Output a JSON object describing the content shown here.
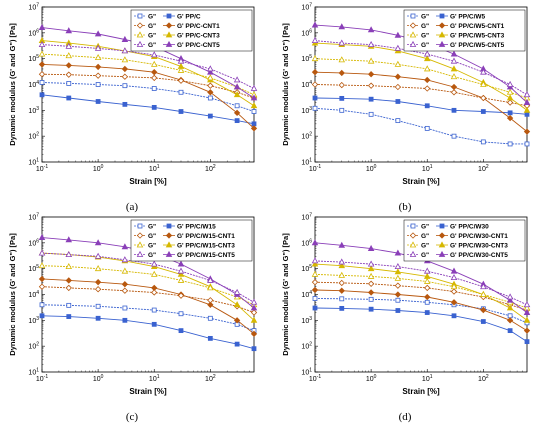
{
  "chart_data": [
    {
      "panel": "(a)",
      "type": "line",
      "xscale": "log",
      "yscale": "log",
      "xlim": [
        0.1,
        600
      ],
      "ylim": [
        10,
        10000000
      ],
      "xlabel": "Strain [%]",
      "ylabel": "Dynamic modulus (G' and G\") [Pa]",
      "xticks": [
        "10-1",
        "100",
        "101",
        "102"
      ],
      "yticks": [
        "101",
        "102",
        "103",
        "104",
        "105",
        "106",
        "107"
      ],
      "legend": {
        "position": "top-right",
        "left": [
          "G\"",
          "G\"",
          "G\"",
          "G\""
        ],
        "right": [
          "G' PP/C",
          "G' PP/C-CNT1",
          "G' PP/C-CNT3",
          "G' PP/C-CNT5"
        ]
      },
      "series": [
        {
          "name": "G' PP/C",
          "marker": "square",
          "color": "#3a62d0",
          "filled": true,
          "x": [
            0.1,
            0.3,
            1,
            3,
            10,
            30,
            100,
            300,
            600
          ],
          "y": [
            4000,
            3000,
            2200,
            1700,
            1300,
            900,
            600,
            400,
            300
          ]
        },
        {
          "name": "G\" PP/C",
          "marker": "square",
          "color": "#3a62d0",
          "filled": false,
          "x": [
            0.1,
            0.3,
            1,
            3,
            10,
            30,
            100,
            300,
            600
          ],
          "y": [
            12000,
            11000,
            10000,
            9000,
            7000,
            5000,
            3000,
            1500,
            900
          ]
        },
        {
          "name": "G' PP/C-CNT1",
          "marker": "diamond",
          "color": "#b8580f",
          "filled": true,
          "x": [
            0.1,
            0.3,
            1,
            3,
            10,
            30,
            100,
            300,
            600
          ],
          "y": [
            60000,
            55000,
            48000,
            40000,
            30000,
            15000,
            5000,
            800,
            200
          ]
        },
        {
          "name": "G\" PP/C-CNT1",
          "marker": "diamond",
          "color": "#b8580f",
          "filled": false,
          "x": [
            0.1,
            0.3,
            1,
            3,
            10,
            30,
            100,
            300,
            600
          ],
          "y": [
            25000,
            24000,
            22000,
            20000,
            18000,
            14000,
            9000,
            5000,
            3000
          ]
        },
        {
          "name": "G' PP/C-CNT3",
          "marker": "triangle",
          "color": "#d6b800",
          "filled": true,
          "x": [
            0.1,
            0.3,
            1,
            3,
            10,
            30,
            100,
            300,
            600
          ],
          "y": [
            500000,
            400000,
            300000,
            200000,
            120000,
            50000,
            15000,
            4000,
            1500
          ]
        },
        {
          "name": "G\" PP/C-CNT3",
          "marker": "triangle",
          "color": "#d6b800",
          "filled": false,
          "x": [
            0.1,
            0.3,
            1,
            3,
            10,
            30,
            100,
            300,
            600
          ],
          "y": [
            150000,
            130000,
            110000,
            90000,
            60000,
            35000,
            18000,
            8000,
            4000
          ]
        },
        {
          "name": "G' PP/C-CNT5",
          "marker": "triangle",
          "color": "#8a3fb8",
          "filled": true,
          "x": [
            0.1,
            0.3,
            1,
            3,
            10,
            30,
            100,
            300,
            600
          ],
          "y": [
            1600000,
            1200000,
            900000,
            550000,
            300000,
            100000,
            30000,
            8000,
            3000
          ]
        },
        {
          "name": "G\" PP/C-CNT5",
          "marker": "triangle",
          "color": "#8a3fb8",
          "filled": false,
          "x": [
            0.1,
            0.3,
            1,
            3,
            10,
            30,
            100,
            300,
            600
          ],
          "y": [
            350000,
            300000,
            250000,
            200000,
            140000,
            80000,
            40000,
            15000,
            7000
          ]
        }
      ]
    },
    {
      "panel": "(b)",
      "type": "line",
      "xscale": "log",
      "yscale": "log",
      "xlim": [
        0.1,
        600
      ],
      "ylim": [
        10,
        10000000
      ],
      "xlabel": "Strain [%]",
      "ylabel": "Dynamic modulus (G' and G\") [Pa]",
      "xticks": [
        "10-1",
        "100",
        "101",
        "102"
      ],
      "yticks": [
        "101",
        "102",
        "103",
        "104",
        "105",
        "106",
        "107"
      ],
      "legend": {
        "position": "top-right",
        "left": [
          "G\"",
          "G\"",
          "G\"",
          "G\""
        ],
        "right": [
          "G' PP/C/W5",
          "G' PP/C/W5-CNT1",
          "G' PP/C/W5-CNT3",
          "G' PP/C/W5-CNT5"
        ]
      },
      "series": [
        {
          "name": "G' PP/C/W5",
          "marker": "square",
          "color": "#3a62d0",
          "filled": true,
          "x": [
            0.1,
            0.3,
            1,
            3,
            10,
            30,
            100,
            300,
            600
          ],
          "y": [
            3000,
            2900,
            2700,
            2200,
            1500,
            1000,
            900,
            800,
            700
          ]
        },
        {
          "name": "G\" PP/C/W5",
          "marker": "square",
          "color": "#3a62d0",
          "filled": false,
          "x": [
            0.1,
            0.3,
            1,
            3,
            10,
            30,
            100,
            300,
            600
          ],
          "y": [
            1200,
            1000,
            700,
            400,
            200,
            100,
            60,
            50,
            50
          ]
        },
        {
          "name": "G' PP/C/W5-CNT1",
          "marker": "diamond",
          "color": "#b8580f",
          "filled": true,
          "x": [
            0.1,
            0.3,
            1,
            3,
            10,
            30,
            100,
            300,
            600
          ],
          "y": [
            30000,
            28000,
            25000,
            20000,
            15000,
            8000,
            3000,
            500,
            150
          ]
        },
        {
          "name": "G\" PP/C/W5-CNT1",
          "marker": "diamond",
          "color": "#b8580f",
          "filled": false,
          "x": [
            0.1,
            0.3,
            1,
            3,
            10,
            30,
            100,
            300,
            600
          ],
          "y": [
            10000,
            9500,
            9000,
            8000,
            7000,
            5000,
            3000,
            2000,
            1500
          ]
        },
        {
          "name": "G' PP/C/W5-CNT3",
          "marker": "triangle",
          "color": "#d6b800",
          "filled": true,
          "x": [
            0.1,
            0.3,
            1,
            3,
            10,
            30,
            100,
            300,
            600
          ],
          "y": [
            400000,
            350000,
            300000,
            200000,
            100000,
            40000,
            12000,
            3000,
            1000
          ]
        },
        {
          "name": "G\" PP/C/W5-CNT3",
          "marker": "triangle",
          "color": "#d6b800",
          "filled": false,
          "x": [
            0.1,
            0.3,
            1,
            3,
            10,
            30,
            100,
            300,
            600
          ],
          "y": [
            100000,
            90000,
            80000,
            60000,
            40000,
            20000,
            10000,
            5000,
            3000
          ]
        },
        {
          "name": "G' PP/C/W5-CNT5",
          "marker": "triangle",
          "color": "#8a3fb8",
          "filled": true,
          "x": [
            0.1,
            0.3,
            1,
            3,
            10,
            30,
            100,
            300,
            600
          ],
          "y": [
            2000000,
            1700000,
            1300000,
            800000,
            400000,
            150000,
            40000,
            8000,
            2000
          ]
        },
        {
          "name": "G\" PP/C/W5-CNT5",
          "marker": "triangle",
          "color": "#8a3fb8",
          "filled": false,
          "x": [
            0.1,
            0.3,
            1,
            3,
            10,
            30,
            100,
            300,
            600
          ],
          "y": [
            500000,
            400000,
            350000,
            250000,
            150000,
            80000,
            30000,
            10000,
            4000
          ]
        }
      ]
    },
    {
      "panel": "(c)",
      "type": "line",
      "xscale": "log",
      "yscale": "log",
      "xlim": [
        0.1,
        600
      ],
      "ylim": [
        10,
        10000000
      ],
      "xlabel": "Strain [%]",
      "ylabel": "Dynamic modulus (G' and G\") [Pa]",
      "xticks": [
        "10-1",
        "100",
        "101",
        "102"
      ],
      "yticks": [
        "101",
        "102",
        "103",
        "104",
        "105",
        "106",
        "107"
      ],
      "legend": {
        "position": "top-right",
        "left": [
          "G\"",
          "G\"",
          "G\"",
          "G\""
        ],
        "right": [
          "G' PP/C/W15",
          "G' PP/C/W15-CNT1",
          "G' PP/C/W15-CNT3",
          "G' PP/C/W15-CNT5"
        ]
      },
      "series": [
        {
          "name": "G' PP/C/W15",
          "marker": "square",
          "color": "#3a62d0",
          "filled": true,
          "x": [
            0.1,
            0.3,
            1,
            3,
            10,
            30,
            100,
            300,
            600
          ],
          "y": [
            1500,
            1400,
            1200,
            1000,
            700,
            400,
            200,
            120,
            80
          ]
        },
        {
          "name": "G\" PP/C/W15",
          "marker": "square",
          "color": "#3a62d0",
          "filled": false,
          "x": [
            0.1,
            0.3,
            1,
            3,
            10,
            30,
            100,
            300,
            600
          ],
          "y": [
            4000,
            3800,
            3500,
            3000,
            2500,
            1800,
            1200,
            700,
            400
          ]
        },
        {
          "name": "G' PP/C/W15-CNT1",
          "marker": "diamond",
          "color": "#b8580f",
          "filled": true,
          "x": [
            0.1,
            0.3,
            1,
            3,
            10,
            30,
            100,
            300,
            600
          ],
          "y": [
            40000,
            35000,
            30000,
            25000,
            18000,
            10000,
            4000,
            1000,
            300
          ]
        },
        {
          "name": "G\" PP/C/W15-CNT1",
          "marker": "diamond",
          "color": "#b8580f",
          "filled": false,
          "x": [
            0.1,
            0.3,
            1,
            3,
            10,
            30,
            100,
            300,
            600
          ],
          "y": [
            20000,
            18000,
            16000,
            14000,
            12000,
            9000,
            6000,
            3500,
            2000
          ]
        },
        {
          "name": "G' PP/C/W15-CNT3",
          "marker": "triangle",
          "color": "#d6b800",
          "filled": true,
          "x": [
            0.1,
            0.3,
            1,
            3,
            10,
            30,
            100,
            300,
            600
          ],
          "y": [
            400000,
            350000,
            280000,
            200000,
            120000,
            60000,
            20000,
            4000,
            1000
          ]
        },
        {
          "name": "G\" PP/C/W15-CNT3",
          "marker": "triangle",
          "color": "#d6b800",
          "filled": false,
          "x": [
            0.1,
            0.3,
            1,
            3,
            10,
            30,
            100,
            300,
            600
          ],
          "y": [
            130000,
            120000,
            100000,
            80000,
            60000,
            35000,
            18000,
            8000,
            4000
          ]
        },
        {
          "name": "G' PP/C/W15-CNT5",
          "marker": "triangle",
          "color": "#8a3fb8",
          "filled": true,
          "x": [
            0.1,
            0.3,
            1,
            3,
            10,
            30,
            100,
            300,
            600
          ],
          "y": [
            1600000,
            1300000,
            1000000,
            700000,
            400000,
            150000,
            40000,
            10000,
            3000
          ]
        },
        {
          "name": "G\" PP/C/W15-CNT5",
          "marker": "triangle",
          "color": "#8a3fb8",
          "filled": false,
          "x": [
            0.1,
            0.3,
            1,
            3,
            10,
            30,
            100,
            300,
            600
          ],
          "y": [
            400000,
            350000,
            300000,
            220000,
            150000,
            80000,
            35000,
            12000,
            5000
          ]
        }
      ]
    },
    {
      "panel": "(d)",
      "type": "line",
      "xscale": "log",
      "yscale": "log",
      "xlim": [
        0.1,
        600
      ],
      "ylim": [
        10,
        10000000
      ],
      "xlabel": "Strain [%]",
      "ylabel": "Dynamic modulus (G' and G\") [Pa]",
      "xticks": [
        "10-1",
        "100",
        "101",
        "102"
      ],
      "yticks": [
        "101",
        "102",
        "103",
        "104",
        "105",
        "106",
        "107"
      ],
      "legend": {
        "position": "top-right",
        "left": [
          "G\"",
          "G\"",
          "G\"",
          "G\""
        ],
        "right": [
          "G' PP/C/W30",
          "G' PP/C/W30-CNT1",
          "G' PP/C/W30-CNT3",
          "G' PP/C/W30-CNT5"
        ]
      },
      "series": [
        {
          "name": "G' PP/C/W30",
          "marker": "square",
          "color": "#3a62d0",
          "filled": true,
          "x": [
            0.1,
            0.3,
            1,
            3,
            10,
            30,
            100,
            300,
            600
          ],
          "y": [
            3000,
            2900,
            2700,
            2400,
            2000,
            1500,
            900,
            400,
            150
          ]
        },
        {
          "name": "G\" PP/C/W30",
          "marker": "square",
          "color": "#3a62d0",
          "filled": false,
          "x": [
            0.1,
            0.3,
            1,
            3,
            10,
            30,
            100,
            300,
            600
          ],
          "y": [
            7000,
            6800,
            6500,
            6000,
            5000,
            4000,
            2800,
            1500,
            800
          ]
        },
        {
          "name": "G' PP/C/W30-CNT1",
          "marker": "diamond",
          "color": "#b8580f",
          "filled": true,
          "x": [
            0.1,
            0.3,
            1,
            3,
            10,
            30,
            100,
            300,
            600
          ],
          "y": [
            15000,
            14000,
            12000,
            10000,
            8000,
            5000,
            2500,
            1000,
            400
          ]
        },
        {
          "name": "G\" PP/C/W30-CNT1",
          "marker": "diamond",
          "color": "#b8580f",
          "filled": false,
          "x": [
            0.1,
            0.3,
            1,
            3,
            10,
            30,
            100,
            300,
            600
          ],
          "y": [
            30000,
            28000,
            26000,
            22000,
            18000,
            13000,
            8000,
            4000,
            2500
          ]
        },
        {
          "name": "G' PP/C/W30-CNT3",
          "marker": "triangle",
          "color": "#d6b800",
          "filled": true,
          "x": [
            0.1,
            0.3,
            1,
            3,
            10,
            30,
            100,
            300,
            600
          ],
          "y": [
            150000,
            130000,
            100000,
            75000,
            50000,
            25000,
            10000,
            3000,
            1000
          ]
        },
        {
          "name": "G\" PP/C/W30-CNT3",
          "marker": "triangle",
          "color": "#d6b800",
          "filled": false,
          "x": [
            0.1,
            0.3,
            1,
            3,
            10,
            30,
            100,
            300,
            600
          ],
          "y": [
            60000,
            55000,
            50000,
            42000,
            32000,
            20000,
            10000,
            5000,
            3000
          ]
        },
        {
          "name": "G' PP/C/W30-CNT5",
          "marker": "triangle",
          "color": "#8a3fb8",
          "filled": true,
          "x": [
            0.1,
            0.3,
            1,
            3,
            10,
            30,
            100,
            300,
            600
          ],
          "y": [
            1000000,
            800000,
            600000,
            400000,
            200000,
            80000,
            25000,
            6000,
            2000
          ]
        },
        {
          "name": "G\" PP/C/W30-CNT5",
          "marker": "triangle",
          "color": "#8a3fb8",
          "filled": false,
          "x": [
            0.1,
            0.3,
            1,
            3,
            10,
            30,
            100,
            300,
            600
          ],
          "y": [
            200000,
            180000,
            150000,
            120000,
            80000,
            45000,
            20000,
            8000,
            4000
          ]
        }
      ]
    }
  ]
}
